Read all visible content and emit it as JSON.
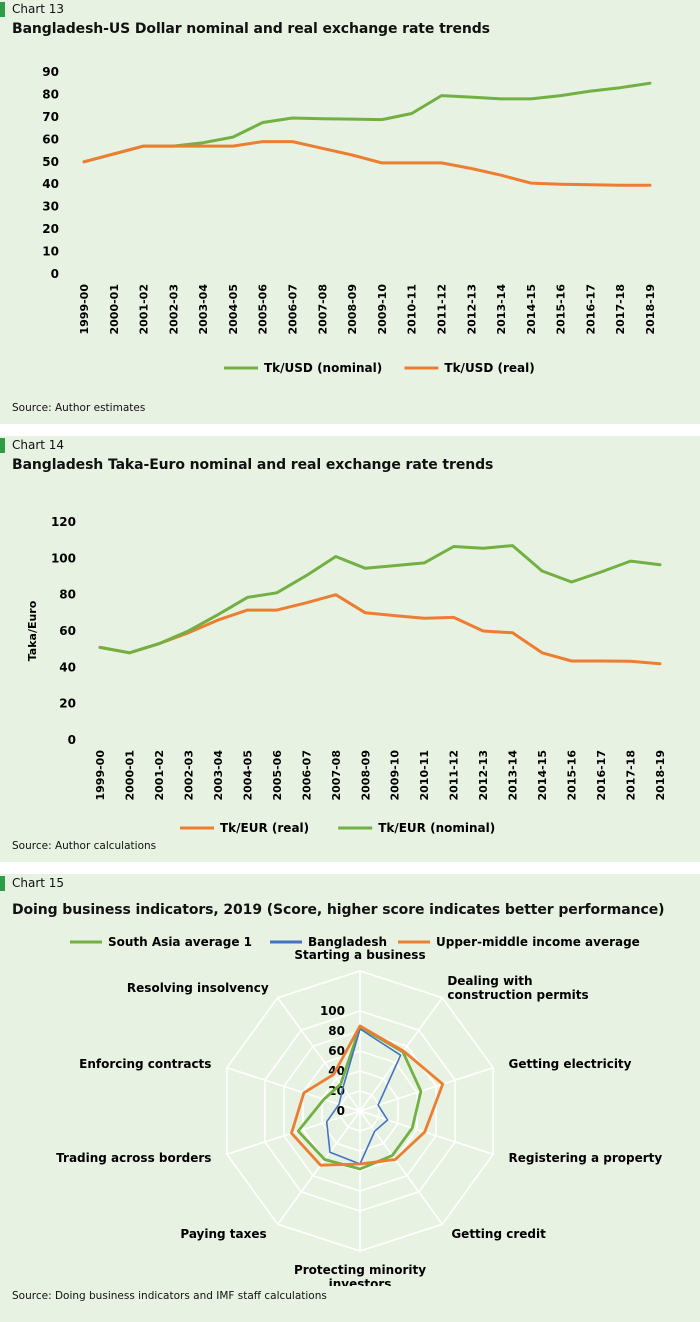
{
  "colors": {
    "green": "#72b043",
    "orange": "#ed7d31",
    "blue": "#4472c4",
    "panel_bg": "#e8f2e2",
    "marker": "#2e9e46"
  },
  "chart13": {
    "label": "Chart 13",
    "title": "Bangladesh-US Dollar nominal and real exchange rate trends",
    "source": "Source: Author estimates"
  },
  "chart14": {
    "label": "Chart 14",
    "title": "Bangladesh Taka-Euro nominal and real exchange rate trends",
    "source": "Source: Author calculations"
  },
  "chart15": {
    "label": "Chart 15",
    "title": "Doing business indicators, 2019 (Score, higher score indicates better performance)",
    "source": "Source: Doing business indicators and IMF staff calculations"
  },
  "chart_data": [
    {
      "type": "line",
      "title": "Bangladesh-US Dollar nominal and real exchange rate trends",
      "xlabel": "",
      "ylabel": "",
      "categories": [
        "1999-00",
        "2000-01",
        "2001-02",
        "2002-03",
        "2003-04",
        "2004-05",
        "2005-06",
        "2006-07",
        "2007-08",
        "2008-09",
        "2009-10",
        "2010-11",
        "2011-12",
        "2012-13",
        "2013-14",
        "2014-15",
        "2015-16",
        "2016-17",
        "2017-18",
        "2018-19"
      ],
      "series": [
        {
          "name": "Tk/USD (nominal)",
          "color": "#72b043",
          "values": [
            50,
            53.5,
            57,
            57,
            58.5,
            61,
            67.5,
            69.5,
            69.2,
            69,
            68.8,
            71.5,
            79.5,
            78.8,
            78,
            78,
            79.5,
            81.5,
            83,
            85
          ]
        },
        {
          "name": "Tk/USD (real)",
          "color": "#ed7d31",
          "values": [
            50,
            53.5,
            57,
            57,
            57,
            57,
            59,
            59,
            56,
            53,
            49.5,
            49.5,
            49.5,
            47,
            44,
            40.5,
            40,
            39.8,
            39.5,
            39.5
          ]
        }
      ],
      "yticks": [
        0,
        10,
        20,
        30,
        40,
        50,
        60,
        70,
        80,
        90
      ],
      "ylim": [
        0,
        90
      ],
      "legend": "bottom",
      "grid": false
    },
    {
      "type": "line",
      "title": "Bangladesh Taka-Euro nominal and real exchange rate trends",
      "xlabel": "",
      "ylabel": "Taka/Euro",
      "categories": [
        "1999-00",
        "2000-01",
        "2001-02",
        "2002-03",
        "2003-04",
        "2004-05",
        "2005-06",
        "2006-07",
        "2007-08",
        "2008-09",
        "2009-10",
        "2010-11",
        "2011-12",
        "2012-13",
        "2013-14",
        "2014-15",
        "2015-16",
        "2016-17",
        "2017-18",
        "2018-19"
      ],
      "series": [
        {
          "name": "Tk/EUR (real)",
          "color": "#ed7d31",
          "values": [
            51,
            48,
            53,
            59,
            66,
            71.5,
            71.5,
            75.5,
            80,
            70,
            68.5,
            67,
            67.5,
            60,
            59,
            48,
            43.5,
            43.5,
            43.3,
            42
          ]
        },
        {
          "name": "Tk/EUR (nominal)",
          "color": "#72b043",
          "values": [
            51,
            48,
            53,
            60,
            69,
            78.5,
            81,
            90.5,
            101,
            94.5,
            96,
            97.5,
            106.5,
            105.5,
            107,
            93,
            87,
            92.5,
            98.5,
            96.5
          ]
        }
      ],
      "yticks": [
        0,
        20,
        40,
        60,
        80,
        100,
        120
      ],
      "ylim": [
        0,
        120
      ],
      "legend": "bottom",
      "grid": false
    },
    {
      "type": "radar",
      "title": "Doing business indicators, 2019 (Score, higher score indicates better performance)",
      "categories": [
        "Starting a business",
        "Dealing with construction permits",
        "Getting electricity",
        "Registering a property",
        "Getting credit",
        "Protecting minority investors",
        "Paying taxes",
        "Trading across borders",
        "Enforcing contracts",
        "Resolving insolvency"
      ],
      "category_lines": [
        [
          "Starting a business"
        ],
        [
          "Dealing with",
          "construction permits"
        ],
        [
          "Getting electricity"
        ],
        [
          "Registering a property"
        ],
        [
          "Getting credit"
        ],
        [
          "Protecting minority",
          "investors"
        ],
        [
          "Paying taxes"
        ],
        [
          "Trading across borders"
        ],
        [
          "Enforcing contracts"
        ],
        [
          "Resolving insolvency"
        ]
      ],
      "rticks": [
        0,
        20,
        40,
        60,
        80,
        100
      ],
      "rlim": [
        0,
        100
      ],
      "legend": "top",
      "series": [
        {
          "name": "South Asia average 1",
          "color": "#72b043",
          "values": [
            84,
            73,
            64,
            55,
            55,
            58,
            60,
            65,
            38,
            33
          ]
        },
        {
          "name": "Bangladesh",
          "color": "#4472c4",
          "values": [
            82,
            69,
            19,
            29,
            25,
            53,
            51,
            35,
            22,
            29
          ]
        },
        {
          "name": "Upper-middle income average",
          "color": "#ed7d31",
          "values": [
            85,
            74,
            87,
            68,
            60,
            53,
            67,
            72,
            59,
            45
          ]
        }
      ]
    }
  ]
}
